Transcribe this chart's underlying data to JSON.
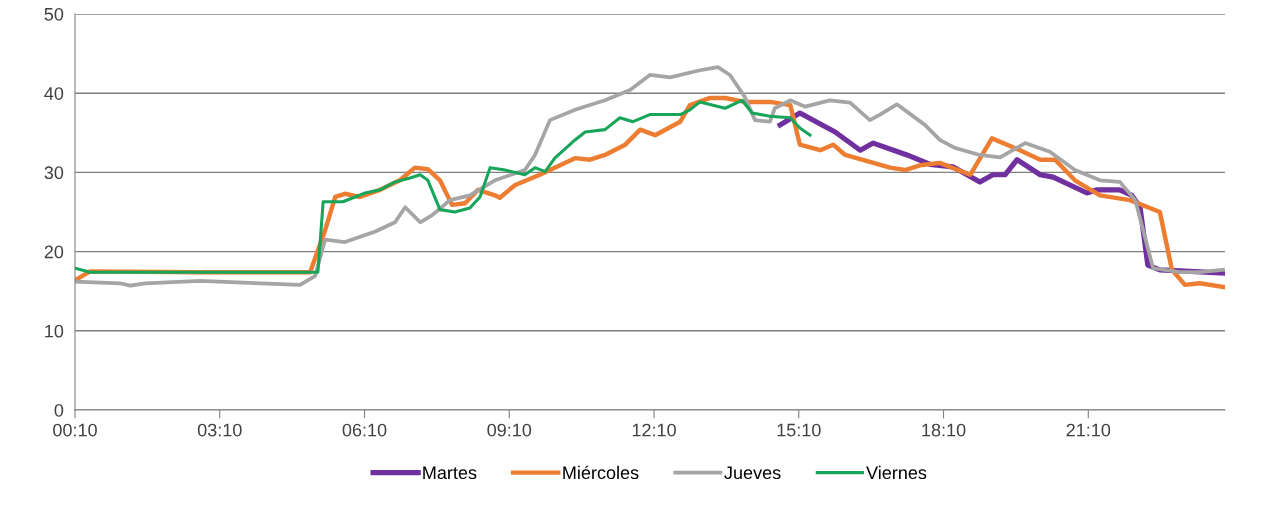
{
  "chart_data": {
    "type": "line",
    "xlim": [
      0.1667,
      24.0
    ],
    "xticks": [
      {
        "value": 0.1667,
        "label": "00:10"
      },
      {
        "value": 3.1667,
        "label": "03:10"
      },
      {
        "value": 6.1667,
        "label": "06:10"
      },
      {
        "value": 9.1667,
        "label": "09:10"
      },
      {
        "value": 12.1667,
        "label": "12:10"
      },
      {
        "value": 15.1667,
        "label": "15:10"
      },
      {
        "value": 18.1667,
        "label": "18:10"
      },
      {
        "value": 21.1667,
        "label": "21:10"
      }
    ],
    "ylim": [
      0,
      50
    ],
    "yticks": [
      0,
      10,
      20,
      30,
      40,
      50
    ],
    "grid": "y",
    "legend": "bottom",
    "marker": "none",
    "line_style": "solid",
    "series": [
      {
        "name": "Martes",
        "color": "#7030a0",
        "x": [
          14.78,
          15.19,
          15.92,
          16.44,
          16.71,
          17.41,
          17.89,
          18.36,
          18.92,
          19.19,
          19.44,
          19.69,
          20.17,
          20.44,
          21.14,
          21.35,
          21.82,
          22.07,
          22.24,
          22.4,
          22.65,
          23.96
        ],
        "values": [
          36.0,
          37.5,
          35.1,
          32.8,
          33.7,
          32.2,
          31.0,
          30.7,
          28.8,
          29.7,
          29.7,
          31.6,
          29.7,
          29.4,
          27.4,
          27.8,
          27.8,
          27.1,
          25.6,
          18.3,
          17.7,
          17.3
        ]
      },
      {
        "name": "Miércoles",
        "color": "#ed7d31",
        "x": [
          0.17,
          0.48,
          2.76,
          5.04,
          5.35,
          5.56,
          5.76,
          6.07,
          6.49,
          6.9,
          7.21,
          7.48,
          7.73,
          7.98,
          8.25,
          8.52,
          8.87,
          8.97,
          9.29,
          9.8,
          10.22,
          10.53,
          10.84,
          11.15,
          11.57,
          11.88,
          12.19,
          12.71,
          12.91,
          13.33,
          13.64,
          14.05,
          14.57,
          14.99,
          15.19,
          15.61,
          15.88,
          16.13,
          17.06,
          17.37,
          17.68,
          18.09,
          18.72,
          19.17,
          19.75,
          20.17,
          20.48,
          20.89,
          21.41,
          22.03,
          22.65,
          22.9,
          23.17,
          23.48,
          24.0
        ],
        "values": [
          16.4,
          17.5,
          17.4,
          17.4,
          22.7,
          26.9,
          27.3,
          26.9,
          27.8,
          29.0,
          30.6,
          30.4,
          29.0,
          25.9,
          26.1,
          27.8,
          27.1,
          26.8,
          28.4,
          29.7,
          30.9,
          31.8,
          31.6,
          32.2,
          33.5,
          35.4,
          34.7,
          36.4,
          38.5,
          39.4,
          39.4,
          38.9,
          38.9,
          38.5,
          33.5,
          32.8,
          33.5,
          32.2,
          30.6,
          30.3,
          30.9,
          31.2,
          29.7,
          34.3,
          32.8,
          31.6,
          31.6,
          29.0,
          27.1,
          26.5,
          25.0,
          17.7,
          15.8,
          16.0,
          15.5
        ]
      },
      {
        "name": "Jueves",
        "color": "#a5a5a5",
        "x": [
          0.17,
          1.1,
          1.31,
          1.62,
          2.76,
          4.83,
          5.14,
          5.35,
          5.76,
          6.38,
          6.8,
          7.01,
          7.32,
          7.57,
          7.94,
          8.35,
          8.87,
          9.49,
          9.7,
          10.01,
          10.53,
          11.15,
          11.67,
          12.08,
          12.5,
          13.12,
          13.49,
          13.74,
          14.05,
          14.26,
          14.57,
          14.67,
          14.99,
          15.3,
          15.81,
          16.23,
          16.64,
          16.85,
          17.2,
          17.78,
          18.09,
          18.4,
          18.92,
          19.34,
          19.86,
          20.37,
          20.89,
          21.41,
          21.82,
          22.14,
          22.51,
          23.07,
          23.48,
          23.96
        ],
        "values": [
          16.2,
          16.0,
          15.7,
          16.0,
          16.3,
          15.8,
          16.9,
          21.5,
          21.2,
          22.5,
          23.7,
          25.6,
          23.7,
          24.6,
          26.5,
          27.1,
          29.0,
          30.3,
          32.2,
          36.6,
          37.9,
          39.1,
          40.4,
          42.3,
          42.0,
          42.9,
          43.3,
          42.3,
          39.5,
          36.6,
          36.4,
          38.1,
          39.1,
          38.3,
          39.1,
          38.8,
          36.6,
          37.3,
          38.6,
          36.0,
          34.1,
          33.1,
          32.2,
          31.9,
          33.7,
          32.6,
          30.3,
          29.0,
          28.8,
          26.5,
          17.9,
          17.4,
          17.4,
          17.7
        ]
      },
      {
        "name": "Viernes",
        "color": "#17a55a",
        "x": [
          0.17,
          0.48,
          4.83,
          5.2,
          5.31,
          5.72,
          6.18,
          6.49,
          6.8,
          7.11,
          7.32,
          7.48,
          7.73,
          8.04,
          8.35,
          8.56,
          8.77,
          9.08,
          9.49,
          9.7,
          9.91,
          10.11,
          10.53,
          10.74,
          11.15,
          11.46,
          11.73,
          12.08,
          12.71,
          12.91,
          13.12,
          13.64,
          13.99,
          14.2,
          14.57,
          14.99,
          15.19,
          15.4
        ],
        "values": [
          17.9,
          17.4,
          17.4,
          17.4,
          26.3,
          26.3,
          27.4,
          27.8,
          28.8,
          29.3,
          29.7,
          29.0,
          25.3,
          25.0,
          25.5,
          26.9,
          30.6,
          30.3,
          29.7,
          30.6,
          30.1,
          31.8,
          34.1,
          35.1,
          35.4,
          36.9,
          36.4,
          37.3,
          37.3,
          37.9,
          38.9,
          38.1,
          39.1,
          37.5,
          37.1,
          36.9,
          35.6,
          34.7
        ]
      }
    ]
  }
}
